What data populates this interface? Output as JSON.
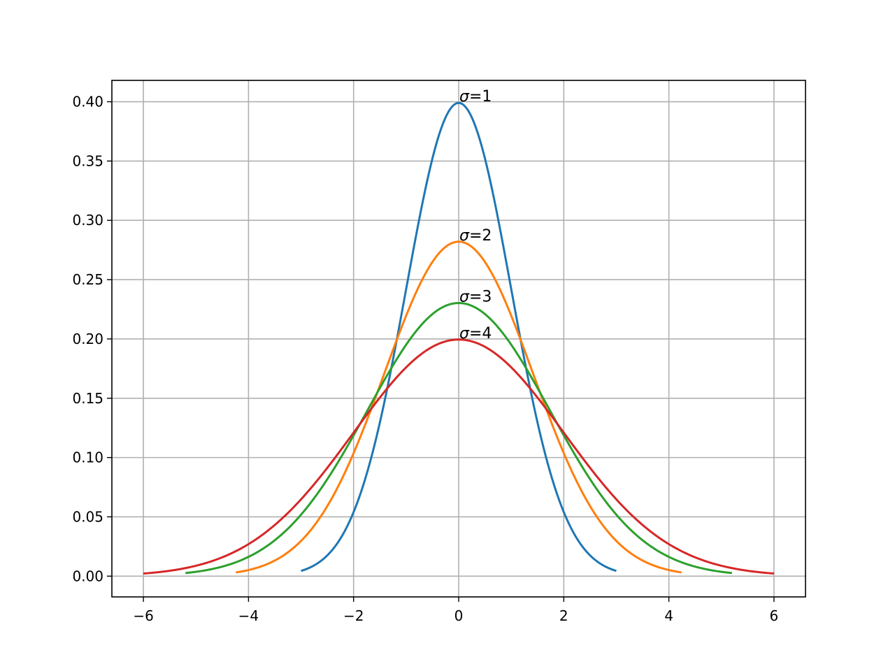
{
  "chart_data": {
    "type": "line",
    "title": "",
    "xlabel": "",
    "ylabel": "",
    "xlim": [
      -6.6,
      6.6
    ],
    "ylim": [
      -0.0175,
      0.418
    ],
    "grid": true,
    "x_ticks": [
      -6,
      -4,
      -2,
      0,
      2,
      4,
      6
    ],
    "x_tick_labels": [
      "−6",
      "−4",
      "−2",
      "0",
      "2",
      "4",
      "6"
    ],
    "y_ticks": [
      0.0,
      0.05,
      0.1,
      0.15,
      0.2,
      0.25,
      0.3,
      0.35,
      0.4
    ],
    "y_tick_labels": [
      "0.00",
      "0.05",
      "0.10",
      "0.15",
      "0.20",
      "0.25",
      "0.30",
      "0.35",
      "0.40"
    ],
    "series": [
      {
        "label": "σ=1",
        "color": "#1f77b4",
        "x_range": [
          -3.0,
          3.0
        ],
        "peak": 0.399,
        "x": [
          -3.0,
          -2.5,
          -2.0,
          -1.5,
          -1.0,
          -0.5,
          0.0,
          0.5,
          1.0,
          1.5,
          2.0,
          2.5,
          3.0
        ],
        "y": [
          0.0044,
          0.0175,
          0.054,
          0.1295,
          0.242,
          0.352,
          0.399,
          0.352,
          0.242,
          0.1295,
          0.054,
          0.0175,
          0.0044
        ]
      },
      {
        "label": "σ=2",
        "color": "#ff7f0e",
        "x_range": [
          -4.24,
          4.24
        ],
        "peak": 0.282,
        "x": [
          -4.24,
          -3.0,
          -2.0,
          -1.0,
          0.0,
          1.0,
          2.0,
          3.0,
          4.24
        ],
        "y": [
          0.0031,
          0.0296,
          0.1037,
          0.2197,
          0.282,
          0.2197,
          0.1037,
          0.0296,
          0.0031
        ]
      },
      {
        "label": "σ=3",
        "color": "#2ca02c",
        "x_range": [
          -5.2,
          5.2
        ],
        "peak": 0.2303,
        "x": [
          -5.2,
          -4.0,
          -2.0,
          -1.0,
          0.0,
          1.0,
          2.0,
          4.0,
          5.2
        ],
        "y": [
          0.0025,
          0.0155,
          0.1187,
          0.1947,
          0.2303,
          0.1947,
          0.1187,
          0.0155,
          0.0025
        ]
      },
      {
        "label": "σ=4",
        "color": "#d62728",
        "x_range": [
          -6.0,
          6.0
        ],
        "peak": 0.1995,
        "x": [
          -6.0,
          -4.0,
          -2.0,
          0.0,
          2.0,
          4.0,
          6.0
        ],
        "y": [
          0.0022,
          0.027,
          0.121,
          0.1995,
          0.121,
          0.027,
          0.0022
        ]
      }
    ]
  }
}
